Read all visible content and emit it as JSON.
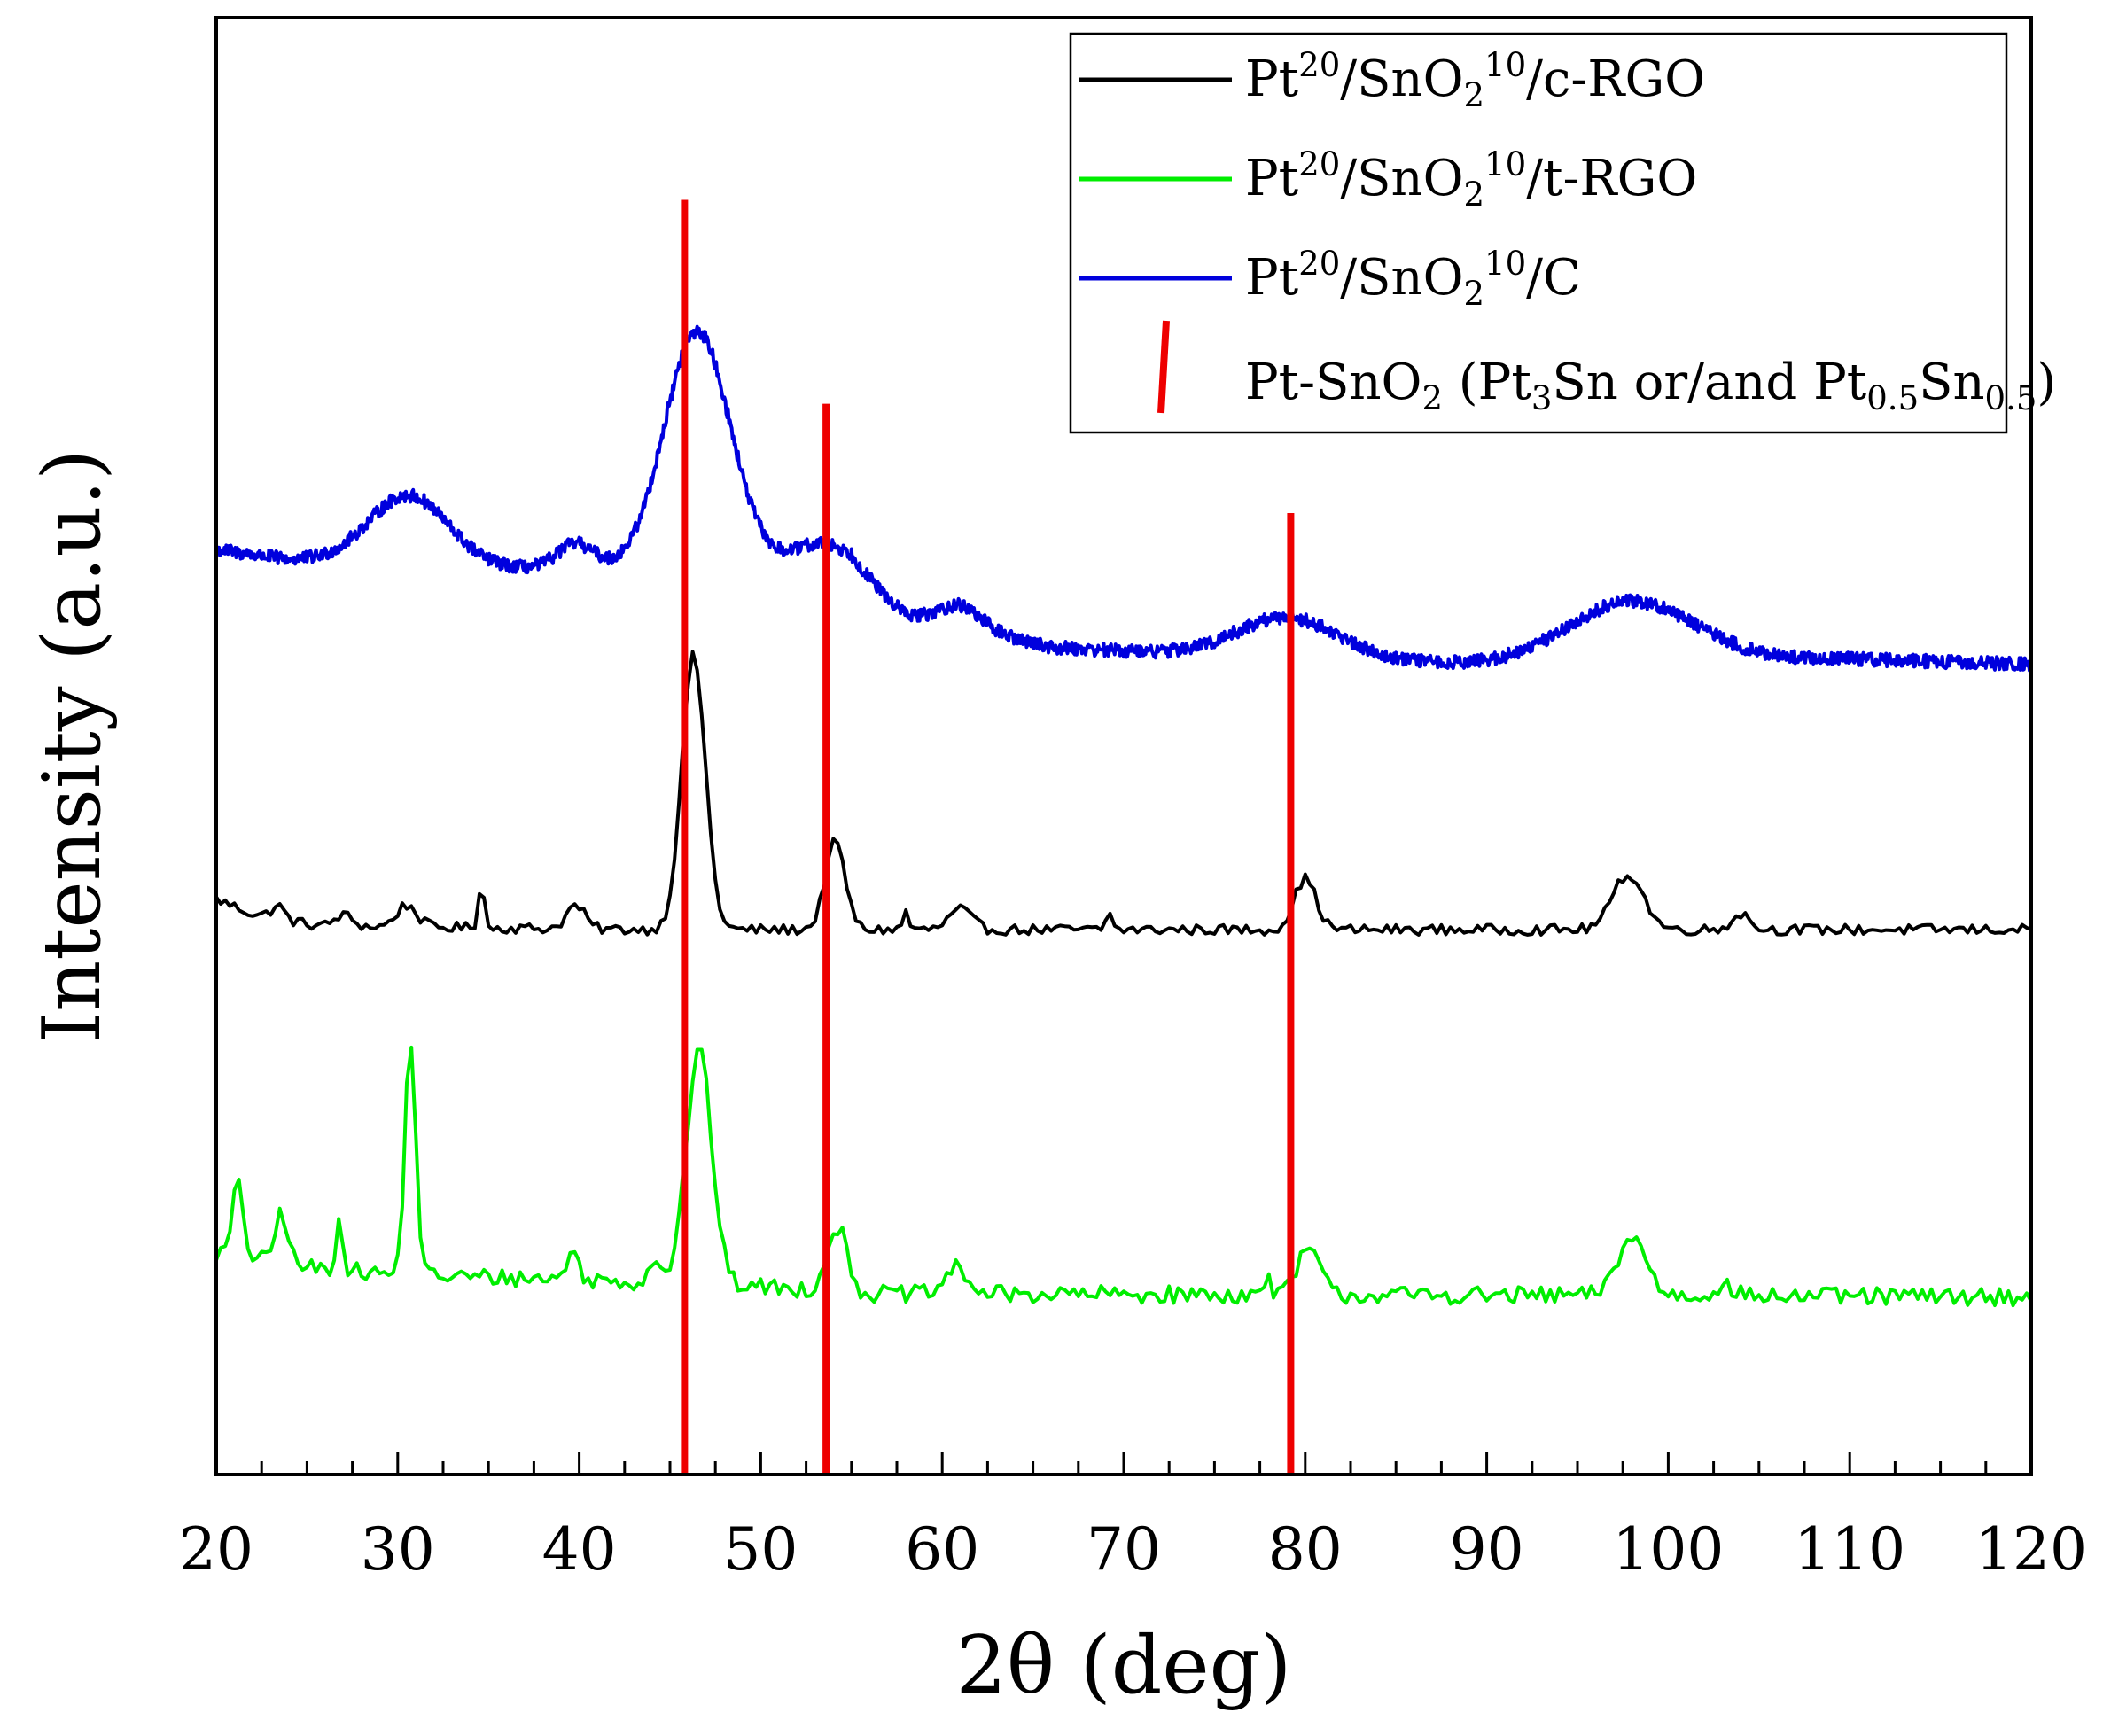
{
  "chart_data": {
    "type": "line",
    "title": "",
    "xlabel": "2θ (deg)",
    "ylabel": "Intensity (a.u.)",
    "xlim": [
      20,
      120
    ],
    "ylim": [
      0,
      100
    ],
    "x_ticks": [
      "20",
      "30",
      "40",
      "50",
      "60",
      "70",
      "80",
      "90",
      "100",
      "110",
      "120"
    ],
    "grid": false,
    "legend_position": "top-right",
    "series": [
      {
        "name": "Pt20/SnO210/c-RGO",
        "legend_parts": [
          {
            "t": "Pt",
            "s": "n"
          },
          {
            "t": "20",
            "s": "sup"
          },
          {
            "t": "/SnO",
            "s": "n"
          },
          {
            "t": "2",
            "s": "sub"
          },
          {
            "t": "10",
            "s": "sup"
          },
          {
            "t": "/c-RGO",
            "s": "n"
          }
        ],
        "color": "#000000",
        "baseline": 37.4,
        "noise": 0.35,
        "background": [
          [
            20,
            2.1
          ],
          [
            22,
            1.1
          ],
          [
            24,
            0.6
          ],
          [
            26,
            0.2
          ],
          [
            30,
            0.2
          ],
          [
            44,
            0
          ],
          [
            120,
            0
          ]
        ],
        "peaks": [
          [
            46.3,
            18.8,
            0.65
          ],
          [
            54.1,
            6.0,
            0.55
          ],
          [
            80.0,
            3.5,
            0.6
          ],
          [
            97.8,
            3.8,
            0.85
          ],
          [
            30.5,
            1.5,
            0.55
          ],
          [
            34.6,
            3.3,
            0.15
          ],
          [
            39.8,
            1.6,
            0.5
          ],
          [
            61.0,
            1.4,
            0.6
          ],
          [
            58.0,
            1.3,
            0.15
          ],
          [
            69.2,
            1.3,
            0.15
          ],
          [
            104.0,
            1.1,
            0.5
          ],
          [
            27.0,
            0.8,
            0.5
          ],
          [
            23.4,
            0.9,
            0.35
          ]
        ]
      },
      {
        "name": "Pt20/SnO210/t-RGO",
        "legend_parts": [
          {
            "t": "Pt",
            "s": "n"
          },
          {
            "t": "20",
            "s": "sup"
          },
          {
            "t": "/SnO",
            "s": "n"
          },
          {
            "t": "2",
            "s": "sub"
          },
          {
            "t": "10",
            "s": "sup"
          },
          {
            "t": "/t-RGO",
            "s": "n"
          }
        ],
        "color": "#00ee00",
        "baseline": 12.2,
        "noise": 0.6,
        "background": [
          [
            20,
            3.0
          ],
          [
            25,
            2.0
          ],
          [
            30,
            1.5
          ],
          [
            40,
            1.2
          ],
          [
            50,
            0.7
          ],
          [
            56,
            0.2
          ],
          [
            120,
            0
          ]
        ],
        "peaks": [
          [
            30.7,
            16.0,
            0.3
          ],
          [
            46.6,
            16.0,
            0.7
          ],
          [
            54.2,
            4.5,
            0.55
          ],
          [
            80.2,
            3.2,
            0.6
          ],
          [
            98.0,
            4.0,
            0.8
          ],
          [
            21.2,
            5.0,
            0.3
          ],
          [
            23.6,
            3.5,
            0.35
          ],
          [
            26.8,
            3.5,
            0.2
          ],
          [
            39.6,
            2.0,
            0.3
          ],
          [
            60.8,
            1.8,
            0.6
          ],
          [
            44.2,
            1.8,
            0.3
          ],
          [
            78.0,
            1.5,
            0.15
          ],
          [
            103.0,
            0.8,
            0.5
          ]
        ]
      },
      {
        "name": "Pt20/SnO210/C",
        "legend_parts": [
          {
            "t": "Pt",
            "s": "n"
          },
          {
            "t": "20",
            "s": "sup"
          },
          {
            "t": "/SnO",
            "s": "n"
          },
          {
            "t": "2",
            "s": "sub"
          },
          {
            "t": "10",
            "s": "sup"
          },
          {
            "t": "/C",
            "s": "n"
          }
        ],
        "color": "#0000dd",
        "baseline": 56.0,
        "noise": 0.45,
        "background": [
          [
            20,
            7.5
          ],
          [
            24,
            6.8
          ],
          [
            34,
            6.2
          ],
          [
            40,
            6.2
          ],
          [
            44,
            6.2
          ],
          [
            50,
            6.4
          ],
          [
            55,
            6.0
          ],
          [
            58,
            3.0
          ],
          [
            62,
            2.0
          ],
          [
            66,
            0.8
          ],
          [
            75,
            0.2
          ],
          [
            90,
            -0.4
          ],
          [
            110,
            0
          ],
          [
            120,
            -0.4
          ]
        ],
        "peaks": [
          [
            30.6,
            4.8,
            2.2
          ],
          [
            46.5,
            16.2,
            1.8
          ],
          [
            39.8,
            1.7,
            1.0
          ],
          [
            53.5,
            1.8,
            1.6
          ],
          [
            61.0,
            1.4,
            1.1
          ],
          [
            79.0,
            2.8,
            2.8
          ],
          [
            98.0,
            4.2,
            3.5
          ]
        ]
      }
    ],
    "reference_lines": {
      "name": "Pt-SnO2 (Pt3Sn or/and Pt0.5Sn0.5)",
      "legend_parts": [
        {
          "t": "Pt-SnO",
          "s": "n"
        },
        {
          "t": "2",
          "s": "sub"
        },
        {
          "t": " (Pt",
          "s": "n"
        },
        {
          "t": "3",
          "s": "sub"
        },
        {
          "t": "Sn or/and Pt",
          "s": "n"
        },
        {
          "t": "0.5",
          "s": "sub"
        },
        {
          "t": "Sn",
          "s": "n"
        },
        {
          "t": "0.5",
          "s": "sub"
        },
        {
          "t": ")",
          "s": "n"
        }
      ],
      "color": "#ee0000",
      "lines": [
        [
          45.8,
          87.5
        ],
        [
          53.6,
          73.5
        ],
        [
          79.2,
          66.0
        ]
      ]
    }
  }
}
